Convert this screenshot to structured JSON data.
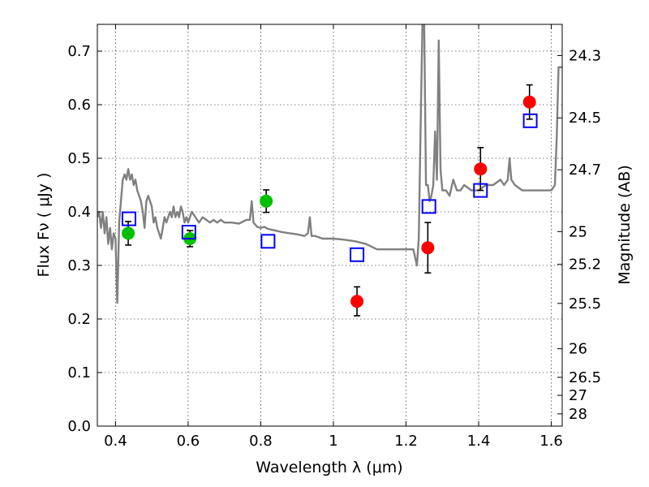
{
  "chart_data": {
    "type": "scatter",
    "xlabel": "Wavelength  λ (μm)",
    "ylabel": "Flux  Fν  ( μJy )",
    "y2label": "Magnitude (AB)",
    "xlim": [
      0.35,
      1.63
    ],
    "ylim": [
      0.0,
      0.75
    ],
    "grid": true,
    "x_ticks": [
      0.4,
      0.6,
      0.8,
      1.0,
      1.2,
      1.4,
      1.6
    ],
    "x_tick_labels": [
      "0.4",
      "0.6",
      "0.8",
      "1",
      "1.2",
      "1.4",
      "1.6"
    ],
    "y_ticks": [
      0.0,
      0.1,
      0.2,
      0.3,
      0.4,
      0.5,
      0.6,
      0.7
    ],
    "y_tick_labels": [
      "0.0",
      "0.1",
      "0.2",
      "0.3",
      "0.4",
      "0.5",
      "0.6",
      "0.7"
    ],
    "y2_ticks": [
      {
        "flux": 0.6918,
        "label": "24.3"
      },
      {
        "flux": 0.5754,
        "label": "24.5"
      },
      {
        "flux": 0.4786,
        "label": "24.7"
      },
      {
        "flux": 0.3631,
        "label": "25"
      },
      {
        "flux": 0.302,
        "label": "25.2"
      },
      {
        "flux": 0.2291,
        "label": "25.5"
      },
      {
        "flux": 0.1445,
        "label": "26"
      },
      {
        "flux": 0.0912,
        "label": "26.5"
      },
      {
        "flux": 0.0575,
        "label": "27"
      },
      {
        "flux": 0.0229,
        "label": "28"
      }
    ],
    "model_spectrum": {
      "color": "#808080",
      "x": [
        0.35,
        0.355,
        0.36,
        0.365,
        0.37,
        0.375,
        0.38,
        0.385,
        0.39,
        0.395,
        0.4,
        0.405,
        0.41,
        0.415,
        0.42,
        0.425,
        0.43,
        0.435,
        0.44,
        0.445,
        0.45,
        0.455,
        0.46,
        0.465,
        0.47,
        0.475,
        0.48,
        0.485,
        0.49,
        0.495,
        0.5,
        0.505,
        0.51,
        0.515,
        0.52,
        0.525,
        0.53,
        0.535,
        0.54,
        0.545,
        0.55,
        0.555,
        0.56,
        0.565,
        0.57,
        0.575,
        0.58,
        0.585,
        0.59,
        0.595,
        0.6,
        0.61,
        0.62,
        0.63,
        0.64,
        0.65,
        0.66,
        0.67,
        0.68,
        0.69,
        0.7,
        0.72,
        0.74,
        0.76,
        0.77,
        0.775,
        0.78,
        0.79,
        0.8,
        0.81,
        0.82,
        0.84,
        0.86,
        0.88,
        0.9,
        0.92,
        0.93,
        0.935,
        0.94,
        0.95,
        0.97,
        0.99,
        1.0,
        1.03,
        1.06,
        1.09,
        1.12,
        1.15,
        1.18,
        1.21,
        1.22,
        1.23,
        1.235,
        1.24,
        1.245,
        1.25,
        1.255,
        1.26,
        1.265,
        1.27,
        1.275,
        1.28,
        1.285,
        1.29,
        1.295,
        1.3,
        1.31,
        1.32,
        1.33,
        1.34,
        1.35,
        1.36,
        1.38,
        1.4,
        1.42,
        1.44,
        1.46,
        1.47,
        1.48,
        1.485,
        1.49,
        1.5,
        1.52,
        1.55,
        1.58,
        1.6,
        1.61,
        1.615,
        1.62,
        1.63
      ],
      "y": [
        0.39,
        0.4,
        0.37,
        0.4,
        0.36,
        0.39,
        0.34,
        0.37,
        0.33,
        0.36,
        0.35,
        0.23,
        0.38,
        0.42,
        0.46,
        0.47,
        0.46,
        0.48,
        0.46,
        0.47,
        0.45,
        0.46,
        0.44,
        0.43,
        0.42,
        0.4,
        0.37,
        0.42,
        0.43,
        0.42,
        0.41,
        0.38,
        0.39,
        0.37,
        0.36,
        0.35,
        0.37,
        0.39,
        0.38,
        0.39,
        0.4,
        0.39,
        0.41,
        0.39,
        0.4,
        0.39,
        0.41,
        0.4,
        0.38,
        0.39,
        0.38,
        0.4,
        0.39,
        0.38,
        0.39,
        0.385,
        0.38,
        0.385,
        0.38,
        0.385,
        0.38,
        0.38,
        0.378,
        0.385,
        0.385,
        0.42,
        0.38,
        0.372,
        0.37,
        0.372,
        0.368,
        0.365,
        0.362,
        0.36,
        0.358,
        0.355,
        0.36,
        0.39,
        0.355,
        0.355,
        0.35,
        0.35,
        0.35,
        0.348,
        0.345,
        0.34,
        0.33,
        0.33,
        0.33,
        0.33,
        0.33,
        0.3,
        0.35,
        0.55,
        0.75,
        0.75,
        0.45,
        0.45,
        0.42,
        0.43,
        0.45,
        0.55,
        0.46,
        0.72,
        0.48,
        0.44,
        0.44,
        0.43,
        0.46,
        0.44,
        0.44,
        0.45,
        0.44,
        0.44,
        0.45,
        0.45,
        0.46,
        0.45,
        0.46,
        0.5,
        0.46,
        0.45,
        0.44,
        0.44,
        0.44,
        0.44,
        0.45,
        0.54,
        0.67,
        0.67
      ]
    },
    "series": [
      {
        "marker": "circle",
        "color": "#ff0000",
        "x": [
          1.065,
          1.26,
          1.405,
          1.54
        ],
        "y": [
          0.233,
          0.333,
          0.48,
          0.605
        ],
        "yerr": [
          0.027,
          0.047,
          0.04,
          0.032
        ]
      },
      {
        "marker": "circle",
        "color": "#00bf00",
        "x": [
          0.435,
          0.605,
          0.815
        ],
        "y": [
          0.36,
          0.35,
          0.42
        ],
        "yerr": [
          0.022,
          0.015,
          0.021
        ]
      },
      {
        "marker": "open-square",
        "color": "#0000ff",
        "x": [
          0.437,
          0.602,
          0.82,
          1.065,
          1.263,
          1.405,
          1.542
        ],
        "y": [
          0.387,
          0.362,
          0.345,
          0.32,
          0.41,
          0.44,
          0.57
        ]
      }
    ]
  }
}
